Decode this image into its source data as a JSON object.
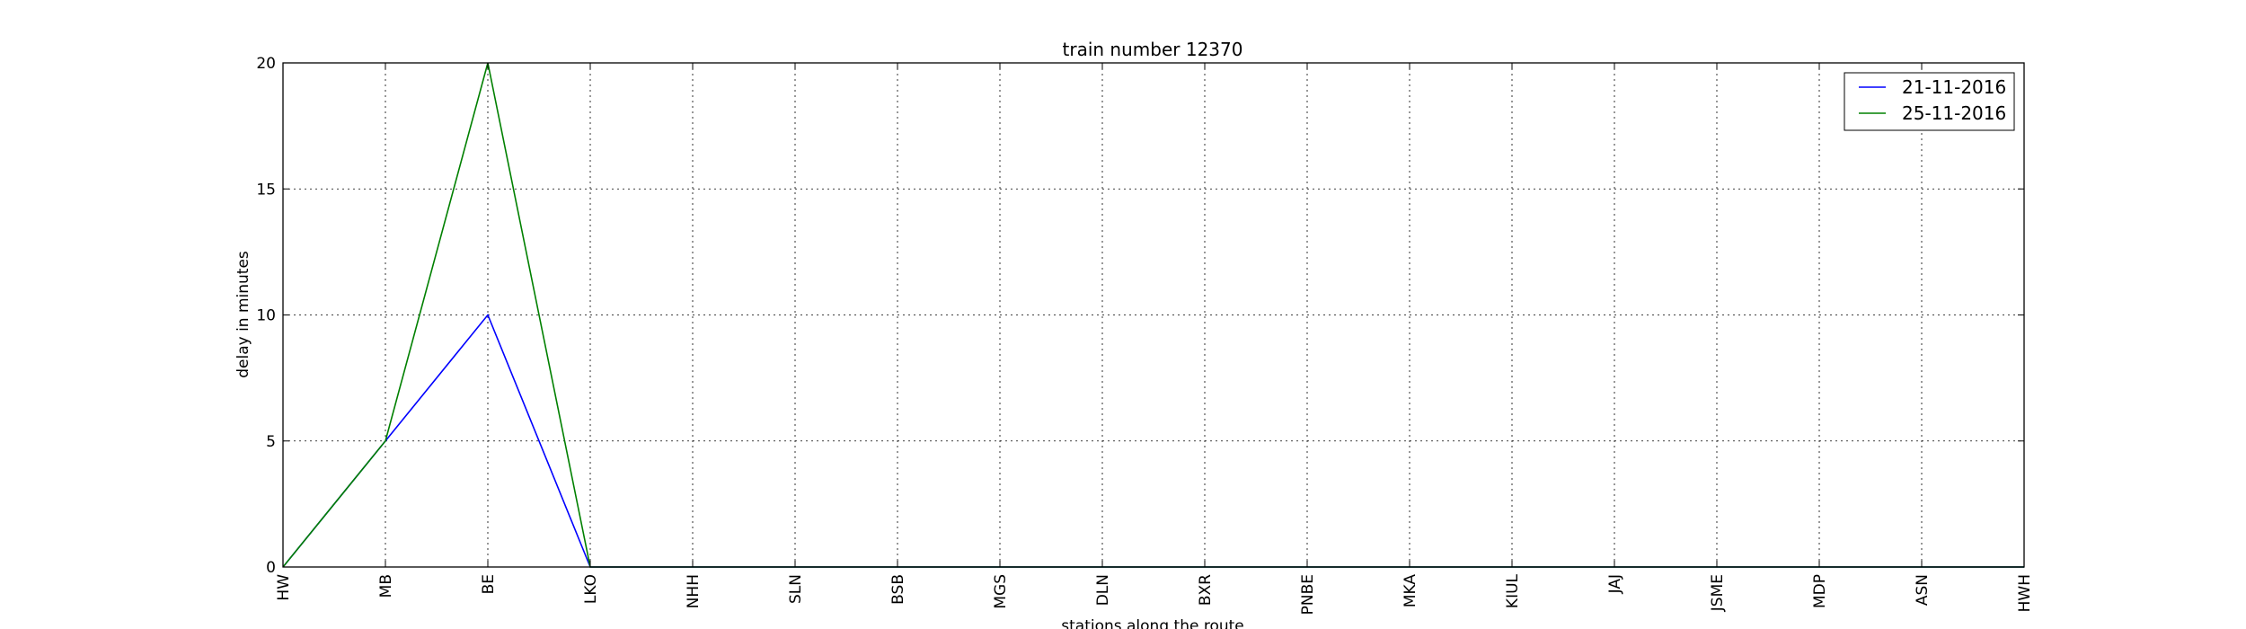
{
  "chart_data": {
    "type": "line",
    "title": "train number 12370",
    "xlabel": "stations along the route",
    "ylabel": "delay in minutes",
    "categories": [
      "HW",
      "MB",
      "BE",
      "LKO",
      "NHH",
      "SLN",
      "BSB",
      "MGS",
      "DLN",
      "BXR",
      "PNBE",
      "MKA",
      "KIUL",
      "JAJ",
      "JSME",
      "MDP",
      "ASN",
      "HWH"
    ],
    "series": [
      {
        "name": "21-11-2016",
        "color": "#0000ff",
        "values": [
          0,
          5,
          10,
          0,
          0,
          0,
          0,
          0,
          0,
          0,
          0,
          0,
          0,
          0,
          0,
          0,
          0,
          0
        ]
      },
      {
        "name": "25-11-2016",
        "color": "#008000",
        "values": [
          0,
          5,
          20,
          0,
          0,
          0,
          0,
          0,
          0,
          0,
          0,
          0,
          0,
          0,
          0,
          0,
          0,
          0
        ]
      }
    ],
    "ylim": [
      0,
      20
    ],
    "yticks": [
      0,
      5,
      10,
      15,
      20
    ],
    "grid": true,
    "legend_position": "top-right"
  }
}
